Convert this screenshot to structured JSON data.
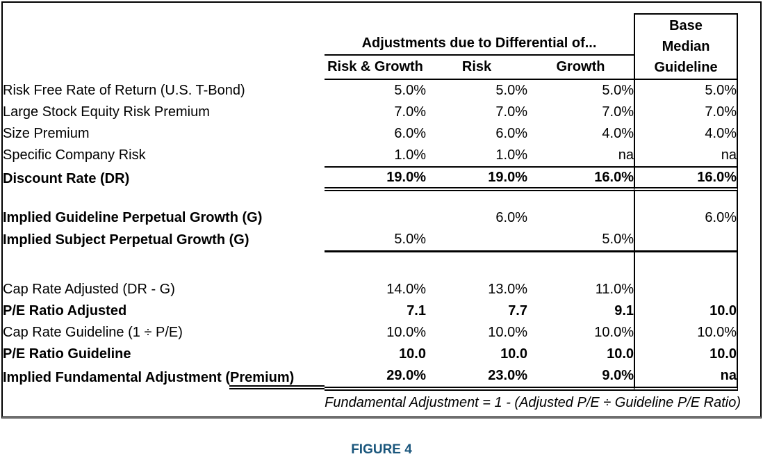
{
  "table": {
    "span_header": "Adjustments due to Differential of...",
    "col_headers": [
      "Risk & Growth",
      "Risk",
      "Growth"
    ],
    "col4_header_lines": [
      "Base",
      "Median",
      "Guideline"
    ],
    "rows": [
      {
        "label": "Risk Free Rate of Return (U.S. T-Bond)",
        "values": [
          "5.0%",
          "5.0%",
          "5.0%",
          "5.0%"
        ]
      },
      {
        "label": "Large Stock Equity Risk Premium",
        "values": [
          "7.0%",
          "7.0%",
          "7.0%",
          "7.0%"
        ]
      },
      {
        "label": "Size Premium",
        "values": [
          "6.0%",
          "6.0%",
          "4.0%",
          "4.0%"
        ]
      },
      {
        "label": "Specific Company Risk",
        "values": [
          "1.0%",
          "1.0%",
          "na",
          "na"
        ]
      },
      {
        "label": "Discount Rate (DR)",
        "values": [
          "19.0%",
          "19.0%",
          "16.0%",
          "16.0%"
        ]
      },
      {
        "label": "Implied Guideline Perpetual Growth (G)",
        "values": [
          "",
          "6.0%",
          "",
          "6.0%"
        ]
      },
      {
        "label": "Implied Subject Perpetual Growth (G)",
        "values": [
          "5.0%",
          "",
          "5.0%",
          ""
        ]
      },
      {
        "label": "Cap Rate Adjusted (DR - G)",
        "values": [
          "14.0%",
          "13.0%",
          "11.0%",
          ""
        ]
      },
      {
        "label": "P/E Ratio Adjusted",
        "values": [
          "7.1",
          "7.7",
          "9.1",
          "10.0"
        ]
      },
      {
        "label": "Cap Rate Guideline (1 ÷ P/E)",
        "values": [
          "10.0%",
          "10.0%",
          "10.0%",
          "10.0%"
        ]
      },
      {
        "label": "P/E Ratio Guideline",
        "values": [
          "10.0",
          "10.0",
          "10.0",
          "10.0"
        ]
      },
      {
        "label": "Implied Fundamental Adjustment (Premium)",
        "values": [
          "29.0%",
          "23.0%",
          "9.0%",
          "na"
        ]
      }
    ],
    "formula_note": "Fundamental Adjustment  = 1 - (Adjusted P/E ÷ Guideline P/E Ratio)"
  },
  "caption": "FIGURE 4",
  "colors": {
    "caption_blue": "#1a567c",
    "text": "#000000",
    "background": "#ffffff",
    "outer_border_bottom_gray": "#6e6e6e"
  }
}
